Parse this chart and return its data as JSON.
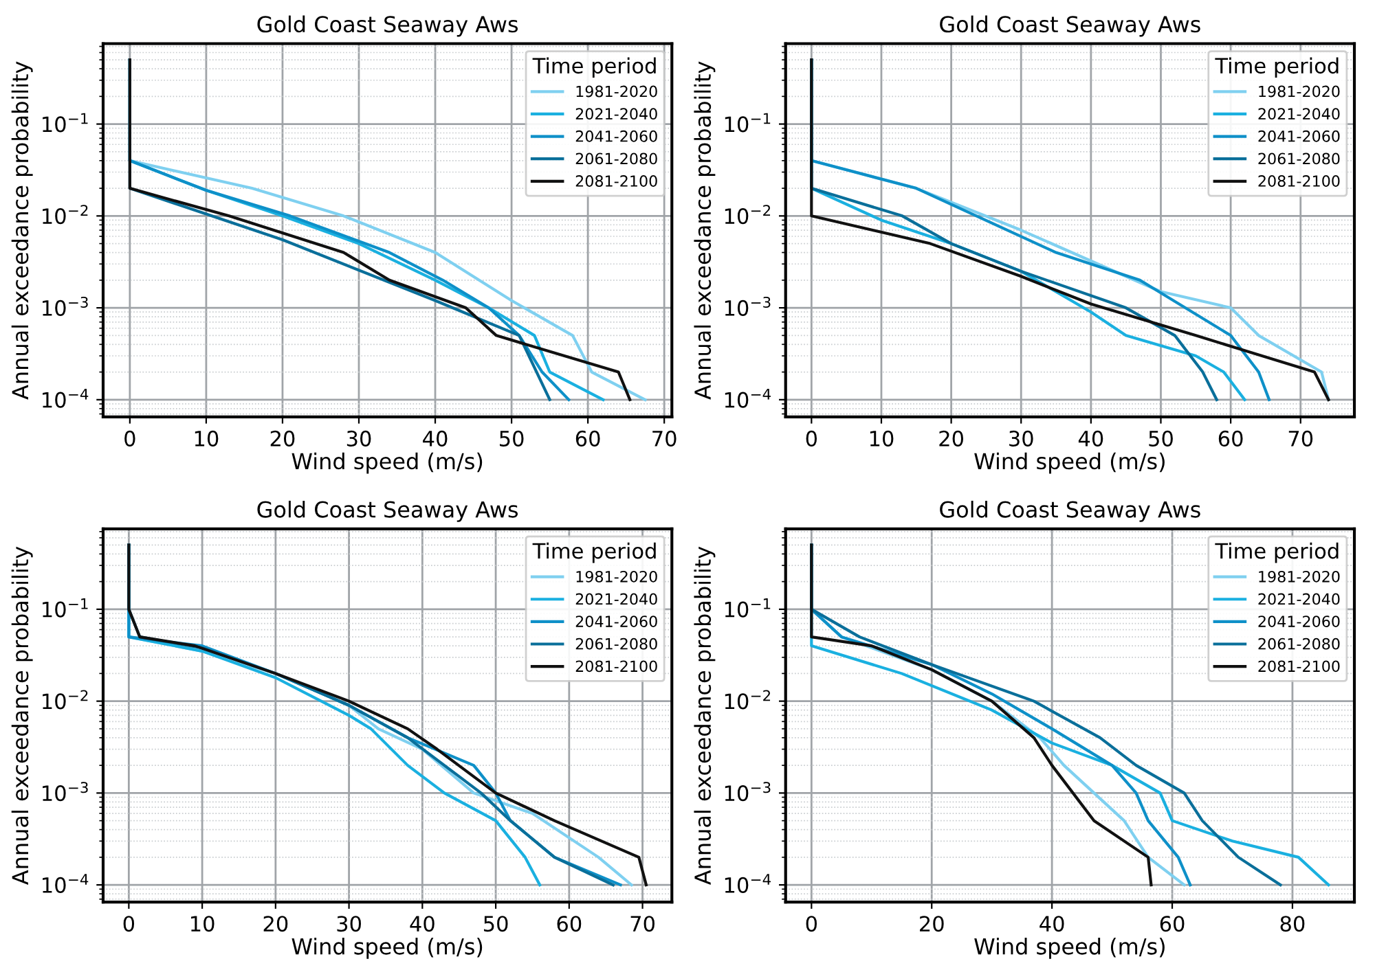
{
  "chart_data": [
    {
      "type": "line",
      "title": "Gold Coast Seaway Aws",
      "xlabel": "Wind speed (m/s)",
      "ylabel": "Annual exceedance probability",
      "legend_title": "Time period",
      "log": "y",
      "grid": true,
      "legend": "top right",
      "line_style": "solid",
      "marker": "none",
      "xlim": [
        -3.5,
        71
      ],
      "xticks": [
        0,
        10,
        20,
        30,
        40,
        50,
        60,
        70
      ],
      "ylim": [
        6.5e-05,
        0.75
      ],
      "yticks": [
        {
          "value": 0.0001,
          "label": "10$^{−4}$"
        },
        {
          "value": 0.001,
          "label": "10$^{−3}$"
        },
        {
          "value": 0.01,
          "label": "10$^{−2}$"
        },
        {
          "value": 0.1,
          "label": "10$^{−1}$"
        }
      ],
      "series": [
        {
          "name": "1981-2020",
          "color": "#7fd0f0",
          "x": [
            0,
            0,
            16,
            28,
            40,
            50,
            58,
            60.5,
            67.5
          ],
          "values": [
            0.5,
            0.04,
            0.02,
            0.01,
            0.004,
            0.0012,
            0.0005,
            0.0002,
            0.0001
          ]
        },
        {
          "name": "2021-2040",
          "color": "#1ab0e0",
          "x": [
            0,
            0,
            10,
            20,
            30,
            40,
            47,
            53,
            55,
            62
          ],
          "values": [
            0.5,
            0.04,
            0.019,
            0.01,
            0.005,
            0.002,
            0.001,
            0.0005,
            0.0002,
            0.0001
          ]
        },
        {
          "name": "2041-2060",
          "color": "#0e90c8",
          "x": [
            0,
            0,
            10,
            21,
            34,
            41,
            47,
            51,
            54,
            57.5
          ],
          "values": [
            0.5,
            0.04,
            0.019,
            0.01,
            0.004,
            0.002,
            0.001,
            0.0005,
            0.0002,
            0.0001
          ]
        },
        {
          "name": "2061-2080",
          "color": "#0a6f9a",
          "x": [
            0,
            0,
            20,
            40,
            51,
            55
          ],
          "values": [
            0.5,
            0.02,
            0.0055,
            0.0012,
            0.0005,
            0.0001
          ]
        },
        {
          "name": "2081-2100",
          "color": "#111111",
          "x": [
            0,
            0,
            13,
            28,
            34,
            44,
            48,
            64,
            65.5
          ],
          "values": [
            0.5,
            0.02,
            0.01,
            0.004,
            0.002,
            0.001,
            0.0005,
            0.0002,
            0.0001
          ]
        }
      ]
    },
    {
      "type": "line",
      "title": "Gold Coast Seaway Aws",
      "xlabel": "Wind speed (m/s)",
      "ylabel": "Annual exceedance probability",
      "legend_title": "Time period",
      "log": "y",
      "grid": true,
      "legend": "top right",
      "line_style": "solid",
      "marker": "none",
      "xlim": [
        -3.7,
        77.7
      ],
      "xticks": [
        0,
        10,
        20,
        30,
        40,
        50,
        60,
        70
      ],
      "ylim": [
        6.5e-05,
        0.75
      ],
      "yticks": [
        {
          "value": 0.0001,
          "label": "10$^{−4}$"
        },
        {
          "value": 0.001,
          "label": "10$^{−3}$"
        },
        {
          "value": 0.01,
          "label": "10$^{−2}$"
        },
        {
          "value": 0.1,
          "label": "10$^{−1}$"
        }
      ],
      "series": [
        {
          "name": "1981-2020",
          "color": "#7fd0f0",
          "x": [
            0,
            0,
            15,
            30,
            45,
            50,
            60,
            64,
            73,
            74
          ],
          "values": [
            0.5,
            0.04,
            0.02,
            0.007,
            0.0022,
            0.0015,
            0.001,
            0.0005,
            0.0002,
            0.0001
          ]
        },
        {
          "name": "2021-2040",
          "color": "#1ab0e0",
          "x": [
            0,
            0,
            10,
            20,
            30,
            40,
            45,
            55,
            59,
            62
          ],
          "values": [
            0.5,
            0.02,
            0.009,
            0.005,
            0.0025,
            0.0009,
            0.0005,
            0.0003,
            0.0002,
            0.0001
          ]
        },
        {
          "name": "2041-2060",
          "color": "#0e90c8",
          "x": [
            0,
            0,
            15,
            35,
            47,
            60,
            64,
            65.5
          ],
          "values": [
            0.5,
            0.04,
            0.02,
            0.004,
            0.002,
            0.0005,
            0.0002,
            0.0001
          ]
        },
        {
          "name": "2061-2080",
          "color": "#0a6f9a",
          "x": [
            0,
            0,
            13,
            20,
            30,
            45,
            52,
            56,
            58
          ],
          "values": [
            0.5,
            0.02,
            0.01,
            0.005,
            0.0025,
            0.001,
            0.0005,
            0.0002,
            0.0001
          ]
        },
        {
          "name": "2081-2100",
          "color": "#111111",
          "x": [
            0,
            0,
            17,
            30,
            40,
            55,
            72,
            74
          ],
          "values": [
            0.5,
            0.01,
            0.005,
            0.0022,
            0.0011,
            0.0005,
            0.0002,
            0.0001
          ]
        }
      ]
    },
    {
      "type": "line",
      "title": "Gold Coast Seaway Aws",
      "xlabel": "Wind speed (m/s)",
      "ylabel": "Annual exceedance probability",
      "legend_title": "Time period",
      "log": "y",
      "grid": true,
      "legend": "top right",
      "line_style": "solid",
      "marker": "none",
      "xlim": [
        -3.5,
        74
      ],
      "xticks": [
        0,
        10,
        20,
        30,
        40,
        50,
        60,
        70
      ],
      "ylim": [
        6.5e-05,
        0.75
      ],
      "yticks": [
        {
          "value": 0.0001,
          "label": "10$^{−4}$"
        },
        {
          "value": 0.001,
          "label": "10$^{−3}$"
        },
        {
          "value": 0.01,
          "label": "10$^{−2}$"
        },
        {
          "value": 0.1,
          "label": "10$^{−1}$"
        }
      ],
      "series": [
        {
          "name": "1981-2020",
          "color": "#7fd0f0",
          "x": [
            0,
            0,
            10,
            20,
            30,
            34,
            40,
            47,
            55,
            64,
            68.5
          ],
          "values": [
            0.5,
            0.05,
            0.035,
            0.02,
            0.009,
            0.005,
            0.003,
            0.001,
            0.0006,
            0.0002,
            0.0001
          ]
        },
        {
          "name": "2021-2040",
          "color": "#1ab0e0",
          "x": [
            0,
            0,
            10,
            20,
            30,
            33,
            38,
            43,
            50,
            54,
            56
          ],
          "values": [
            0.5,
            0.05,
            0.035,
            0.018,
            0.007,
            0.005,
            0.002,
            0.001,
            0.0005,
            0.0002,
            0.0001
          ]
        },
        {
          "name": "2041-2060",
          "color": "#0e90c8",
          "x": [
            0,
            0,
            0,
            10,
            20,
            30,
            38,
            47,
            50,
            52,
            58,
            67
          ],
          "values": [
            0.5,
            0.1,
            0.05,
            0.04,
            0.02,
            0.009,
            0.004,
            0.002,
            0.001,
            0.0005,
            0.0002,
            0.0001
          ]
        },
        {
          "name": "2061-2080",
          "color": "#0a6f9a",
          "x": [
            0,
            0,
            1.5,
            10,
            20,
            30,
            38,
            43,
            48,
            52,
            58,
            66
          ],
          "values": [
            0.5,
            0.1,
            0.05,
            0.038,
            0.02,
            0.009,
            0.004,
            0.002,
            0.001,
            0.0005,
            0.0002,
            0.0001
          ]
        },
        {
          "name": "2081-2100",
          "color": "#111111",
          "x": [
            0,
            0,
            1.5,
            9,
            20,
            30,
            38,
            42,
            50,
            58,
            69.5,
            70.5
          ],
          "values": [
            0.5,
            0.1,
            0.05,
            0.04,
            0.02,
            0.01,
            0.005,
            0.003,
            0.001,
            0.0005,
            0.0002,
            0.0001
          ]
        }
      ]
    },
    {
      "type": "line",
      "title": "Gold Coast Seaway Aws",
      "xlabel": "Wind speed (m/s)",
      "ylabel": "Annual exceedance probability",
      "legend_title": "Time period",
      "log": "y",
      "grid": true,
      "legend": "top right",
      "line_style": "solid",
      "marker": "none",
      "xlim": [
        -4.3,
        90.3
      ],
      "xticks": [
        0,
        20,
        40,
        60,
        80
      ],
      "ylim": [
        6.5e-05,
        0.75
      ],
      "yticks": [
        {
          "value": 0.0001,
          "label": "10$^{−4}$"
        },
        {
          "value": 0.001,
          "label": "10$^{−3}$"
        },
        {
          "value": 0.01,
          "label": "10$^{−2}$"
        },
        {
          "value": 0.1,
          "label": "10$^{−1}$"
        }
      ],
      "series": [
        {
          "name": "1981-2020",
          "color": "#7fd0f0",
          "x": [
            0,
            0,
            5,
            20,
            30,
            38,
            42,
            52,
            56,
            62
          ],
          "values": [
            0.5,
            0.1,
            0.05,
            0.022,
            0.01,
            0.004,
            0.002,
            0.0005,
            0.0002,
            0.0001
          ]
        },
        {
          "name": "2021-2040",
          "color": "#1ab0e0",
          "x": [
            0,
            0,
            15,
            30,
            40,
            50,
            58,
            60,
            70,
            81,
            86
          ],
          "values": [
            0.5,
            0.04,
            0.02,
            0.008,
            0.0035,
            0.002,
            0.001,
            0.0005,
            0.0003,
            0.0002,
            0.0001
          ]
        },
        {
          "name": "2041-2060",
          "color": "#0e90c8",
          "x": [
            0,
            0,
            5,
            20,
            30,
            40,
            50,
            54,
            56,
            61,
            63
          ],
          "values": [
            0.5,
            0.1,
            0.05,
            0.025,
            0.012,
            0.005,
            0.002,
            0.001,
            0.0005,
            0.0002,
            0.0001
          ]
        },
        {
          "name": "2061-2080",
          "color": "#0a6f9a",
          "x": [
            0,
            0,
            8,
            20,
            37,
            48,
            54,
            62,
            65,
            71,
            78
          ],
          "values": [
            0.5,
            0.1,
            0.05,
            0.025,
            0.01,
            0.004,
            0.002,
            0.001,
            0.0005,
            0.0002,
            0.0001
          ]
        },
        {
          "name": "2081-2100",
          "color": "#111111",
          "x": [
            0,
            0,
            10,
            20,
            30,
            37,
            40,
            47,
            56,
            56.5
          ],
          "values": [
            0.5,
            0.05,
            0.04,
            0.022,
            0.01,
            0.004,
            0.002,
            0.0005,
            0.0002,
            0.0001
          ]
        }
      ]
    }
  ]
}
